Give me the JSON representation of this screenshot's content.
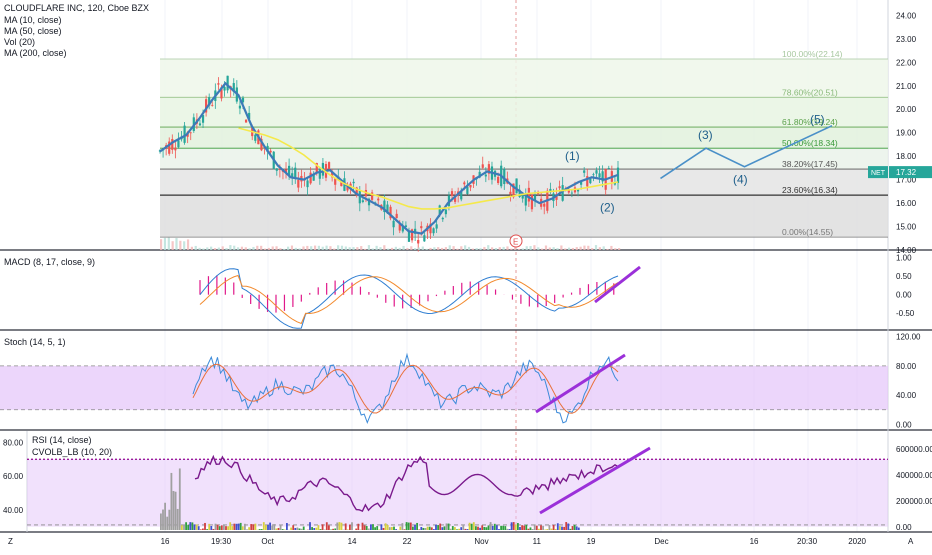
{
  "header": {
    "symbol_line": "CLOUDFLARE INC, 120, Cboe BZX",
    "studies": [
      "MA (10, close)",
      "MA (50, close)",
      "Vol (20)",
      "MA (200, close)"
    ],
    "price_tag": "17.32",
    "ticker_tag": "NET"
  },
  "colors": {
    "ma10": "#3d7ab8",
    "ma50": "#f5e94b",
    "wave": "#4a90c8",
    "purple": "#9b30d9",
    "rsi": "#7a1a8c",
    "band_fill": "#e6c8fa",
    "macd_line": "#2e7dd1",
    "signal_line": "#f28a2e",
    "hist": "#e0188a",
    "candle_up": "#26a69a",
    "candle_down": "#ef5350"
  },
  "price_pane": {
    "y_ticks": [
      "24.00",
      "23.00",
      "22.00",
      "21.00",
      "20.00",
      "19.00",
      "18.00",
      "17.00",
      "16.00",
      "15.00",
      "14.00"
    ],
    "ylim": [
      14,
      24.4
    ],
    "fib_levels": [
      {
        "label": "100.00%(22.14)",
        "value": 22.14,
        "color": "#a8c8a0"
      },
      {
        "label": "78.60%(20.51)",
        "value": 20.51,
        "color": "#8aba7a"
      },
      {
        "label": "61.80%(19.24)",
        "value": 19.24,
        "color": "#5aa04a"
      },
      {
        "label": "50.00%(18.34)",
        "value": 18.34,
        "color": "#3a9a3a"
      },
      {
        "label": "38.20%(17.45)",
        "value": 17.45,
        "color": "#555555"
      },
      {
        "label": "23.60%(16.34)",
        "value": 16.34,
        "color": "#333333"
      },
      {
        "label": "0.00%(14.55)",
        "value": 14.55,
        "color": "#777777"
      }
    ],
    "waves": [
      {
        "label": "(1)",
        "x": 0.59,
        "y": 17.75
      },
      {
        "label": "(2)",
        "x": 0.64,
        "y": 15.55
      },
      {
        "label": "(3)",
        "x": 0.78,
        "y": 18.65
      },
      {
        "label": "(4)",
        "x": 0.83,
        "y": 16.75
      },
      {
        "label": "(5)",
        "x": 0.94,
        "y": 19.3
      }
    ],
    "wave_path": [
      [
        0.715,
        17.05
      ],
      [
        0.78,
        18.34
      ],
      [
        0.835,
        17.55
      ],
      [
        0.96,
        19.3
      ]
    ],
    "earnings_marker": "E"
  },
  "macd_pane": {
    "legend": "MACD (8, 17, close, 9)",
    "y_ticks": [
      "1.00",
      "0.50",
      "0.00",
      "-0.50"
    ],
    "ylim": [
      -0.9,
      1.1
    ]
  },
  "stoch_pane": {
    "legend": "Stoch (14, 5, 1)",
    "y_ticks": [
      "120.00",
      "80.00",
      "40.00",
      "0.00"
    ],
    "ylim": [
      -5,
      125
    ],
    "band": [
      20,
      80
    ]
  },
  "rsi_pane": {
    "legend": [
      "RSI (14, close)",
      "CVOLB_LB (10, 20)"
    ],
    "left_ticks": [
      "80.00",
      "60.00",
      "40.00"
    ],
    "right_ticks": [
      "600000.00",
      "400000.00",
      "200000.00",
      "0.00"
    ],
    "left_lim": [
      28,
      85
    ],
    "band": [
      30,
      70
    ]
  },
  "time_axis": {
    "labels": [
      "16",
      "19:30",
      "Oct",
      "14",
      "22",
      "Nov",
      "11",
      "19",
      "Dec",
      "16",
      "20:30",
      "2020"
    ],
    "corner_left": "Z",
    "corner_right": "A"
  },
  "chart_data": {
    "type": "line",
    "title": "CLOUDFLARE INC, 120, Cboe BZX",
    "x": [
      0.0,
      0.02,
      0.04,
      0.06,
      0.08,
      0.1,
      0.12,
      0.14,
      0.16,
      0.18,
      0.2,
      0.22,
      0.24,
      0.26,
      0.28,
      0.3,
      0.32,
      0.34,
      0.36,
      0.38,
      0.4,
      0.42,
      0.44,
      0.46,
      0.48,
      0.5,
      0.52,
      0.54,
      0.56,
      0.58,
      0.6,
      0.62,
      0.64,
      0.66,
      0.68,
      0.7
    ],
    "series": [
      {
        "name": "MA (10, close)",
        "values": [
          18.2,
          18.6,
          18.9,
          19.6,
          20.4,
          21.1,
          20.6,
          19.3,
          18.4,
          17.6,
          17.1,
          17.0,
          17.3,
          17.4,
          16.9,
          16.4,
          16.1,
          15.8,
          15.3,
          14.8,
          14.7,
          15.2,
          16.0,
          16.5,
          17.0,
          17.35,
          17.2,
          16.7,
          16.3,
          16.0,
          16.2,
          16.6,
          16.9,
          17.1,
          17.0,
          17.2
        ]
      },
      {
        "name": "MA (50, close)",
        "values": [
          null,
          null,
          null,
          null,
          null,
          null,
          19.2,
          19.05,
          18.9,
          18.7,
          18.4,
          18.05,
          17.6,
          17.2,
          16.85,
          16.6,
          16.4,
          16.25,
          16.05,
          15.85,
          15.75,
          15.75,
          15.8,
          15.9,
          16.0,
          16.1,
          16.2,
          16.3,
          16.4,
          16.45,
          16.5,
          16.55,
          16.6,
          16.7,
          16.8,
          16.9
        ]
      }
    ]
  }
}
